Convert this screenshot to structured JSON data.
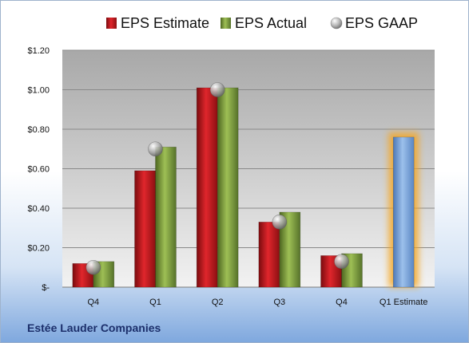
{
  "company": "Estée Lauder Companies",
  "chart_data": {
    "type": "bar",
    "categories": [
      "Q4",
      "Q1",
      "Q2",
      "Q3",
      "Q4",
      "Q1 Estimate"
    ],
    "series": [
      {
        "name": "EPS Estimate",
        "color": "#c0161c",
        "values": [
          0.12,
          0.59,
          1.01,
          0.33,
          0.16,
          null
        ]
      },
      {
        "name": "EPS Actual",
        "color": "#7a9a35",
        "values": [
          0.13,
          0.71,
          1.01,
          0.38,
          0.17,
          null
        ]
      },
      {
        "name": "EPS GAAP",
        "color": "#a6a6a6",
        "marker": "sphere",
        "values": [
          0.1,
          0.7,
          1.0,
          0.33,
          0.13,
          null
        ]
      }
    ],
    "forecast": {
      "category": "Q1 Estimate",
      "value": 0.76,
      "color": "#6f9ad4",
      "glow": "#f5a623"
    },
    "ylim": [
      0,
      1.2
    ],
    "yticks": [
      0,
      0.2,
      0.4,
      0.6,
      0.8,
      1.0,
      1.2
    ],
    "ytick_labels": [
      "$-",
      "$0.20",
      "$0.40",
      "$0.60",
      "$0.80",
      "$1.00",
      "$1.20"
    ],
    "grid": true,
    "legend": "top"
  }
}
